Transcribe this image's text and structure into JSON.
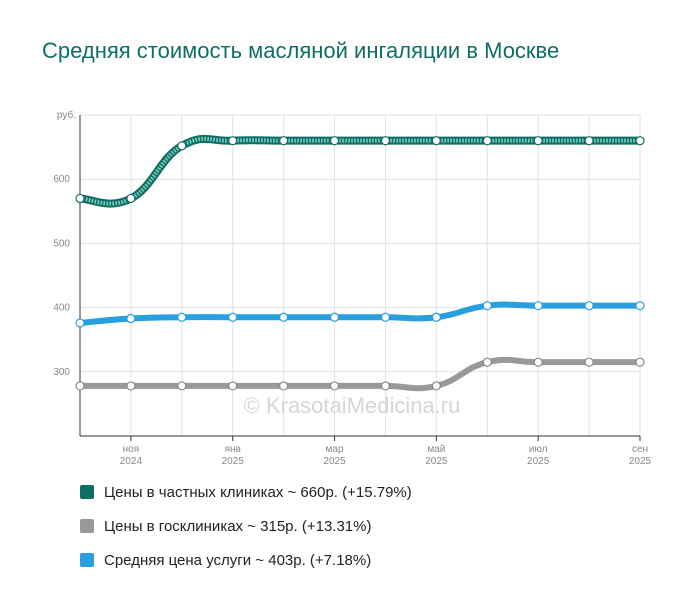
{
  "chart_data": {
    "type": "line",
    "title": "Средняя стоимость масляной ингаляции в Москве",
    "ylabel": "руб.",
    "ylim": [
      200,
      700
    ],
    "yticks": [
      300,
      400,
      500,
      600
    ],
    "x": [
      "2024-10",
      "2024-11",
      "2024-12",
      "2025-01",
      "2025-02",
      "2025-03",
      "2025-04",
      "2025-05",
      "2025-06",
      "2025-07",
      "2025-08",
      "2025-09"
    ],
    "xticks": [
      {
        "index": 1,
        "month": "ноя",
        "year": "2024"
      },
      {
        "index": 3,
        "month": "янв",
        "year": "2025"
      },
      {
        "index": 5,
        "month": "мар",
        "year": "2025"
      },
      {
        "index": 7,
        "month": "май",
        "year": "2025"
      },
      {
        "index": 9,
        "month": "июл",
        "year": "2025"
      },
      {
        "index": 11,
        "month": "сен",
        "year": "2025"
      }
    ],
    "series": [
      {
        "name": "Цены в частных клиниках",
        "color": "#0f6e63",
        "style": "striped",
        "values": [
          570,
          570,
          652,
          660,
          660,
          660,
          660,
          660,
          660,
          660,
          660,
          660
        ]
      },
      {
        "name": "Средняя цена услуги",
        "color": "#2a9fe0",
        "style": "solid",
        "values": [
          376,
          383,
          385,
          385,
          385,
          385,
          385,
          385,
          403,
          403,
          403,
          403
        ]
      },
      {
        "name": "Цены в госклиниках",
        "color": "#999999",
        "style": "solid",
        "values": [
          278,
          278,
          278,
          278,
          278,
          278,
          278,
          278,
          315,
          315,
          315,
          315
        ]
      }
    ],
    "watermark": "© KrasotaiMedicina.ru",
    "grid": true
  },
  "legend": [
    {
      "label": "Цены в частных клиниках ~ 660р. (+15.79%)",
      "color": "#0f6e63"
    },
    {
      "label": "Цены в госклиниках ~ 315р. (+13.31%)",
      "color": "#999999"
    },
    {
      "label": "Средняя цена услуги ~ 403р. (+7.18%)",
      "color": "#2a9fe0"
    }
  ]
}
